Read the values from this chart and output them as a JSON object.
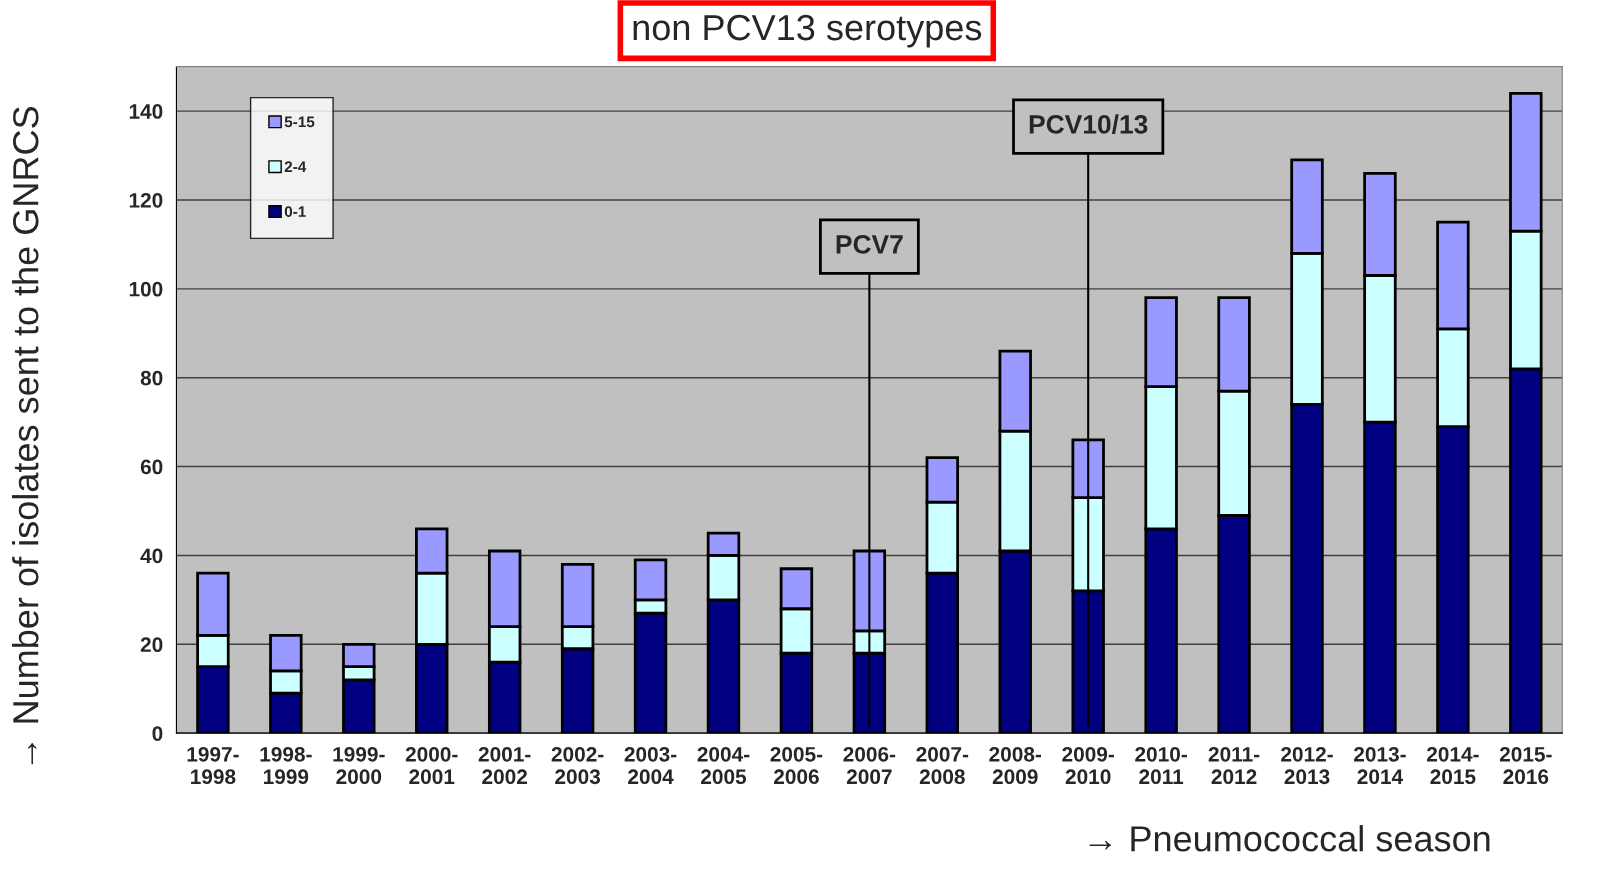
{
  "chart_data": {
    "type": "bar",
    "title": "non PCV13 serotypes",
    "xlabel": "→ Pneumococcal season",
    "ylabel": "→ Number of isolates sent to the GNRCS",
    "categories": [
      "1997-\n1998",
      "1998-\n1999",
      "1999-\n2000",
      "2000-\n2001",
      "2001-\n2002",
      "2002-\n2003",
      "2003-\n2004",
      "2004-\n2005",
      "2005-\n2006",
      "2006-\n2007",
      "2007-\n2008",
      "2008-\n2009",
      "2009-\n2010",
      "2010-\n2011",
      "2011-\n2012",
      "2012-\n2013",
      "2013-\n2014",
      "2014-\n2015",
      "2015-\n2016"
    ],
    "series": [
      {
        "name": "0-1",
        "color": "#000080",
        "values": [
          15,
          9,
          12,
          20,
          16,
          19,
          27,
          30,
          18,
          18,
          36,
          41,
          32,
          46,
          49,
          74,
          70,
          69,
          82
        ]
      },
      {
        "name": "2-4",
        "color": "#ccffff",
        "values": [
          7,
          5,
          3,
          16,
          8,
          5,
          3,
          10,
          10,
          5,
          16,
          27,
          21,
          32,
          28,
          34,
          33,
          22,
          31
        ]
      },
      {
        "name": "5-15",
        "color": "#9999ff",
        "values": [
          14,
          8,
          5,
          10,
          17,
          14,
          9,
          5,
          9,
          18,
          10,
          18,
          13,
          20,
          21,
          21,
          23,
          24,
          31
        ]
      }
    ],
    "stacked": true,
    "ylim": [
      0,
      150
    ],
    "yticks": [
      0,
      20,
      40,
      60,
      80,
      100,
      120,
      140
    ],
    "grid": "y",
    "legend": "top left",
    "ref_lines": [
      {
        "axis": "x",
        "value": "2006-\n2007",
        "label": "PCV7"
      },
      {
        "axis": "x",
        "value": "2009-\n2010",
        "label": "PCV10/13"
      }
    ]
  }
}
